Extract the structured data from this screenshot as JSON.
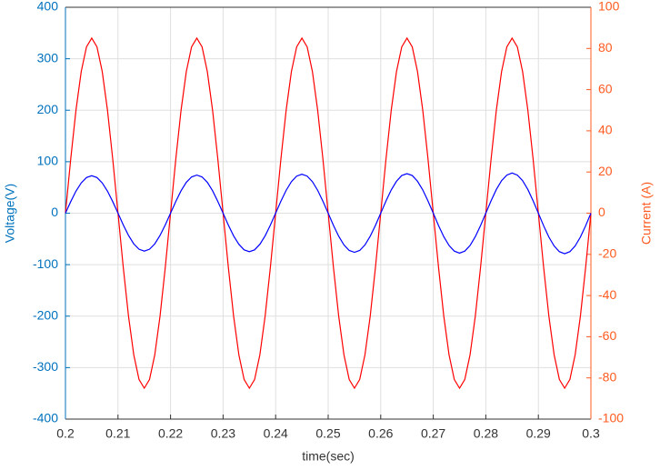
{
  "chart_data": {
    "type": "line",
    "xlabel": "time(sec)",
    "ylabel": "Voltage(V)",
    "y2label": "Current (A)",
    "x": [
      0.2,
      0.201,
      0.202,
      0.203,
      0.204,
      0.205,
      0.206,
      0.207,
      0.208,
      0.209,
      0.21,
      0.211,
      0.212,
      0.213,
      0.214,
      0.215,
      0.216,
      0.217,
      0.218,
      0.219,
      0.22,
      0.221,
      0.222,
      0.223,
      0.224,
      0.225,
      0.226,
      0.227,
      0.228,
      0.229,
      0.23,
      0.231,
      0.232,
      0.233,
      0.234,
      0.235,
      0.236,
      0.237,
      0.238,
      0.239,
      0.24,
      0.241,
      0.242,
      0.243,
      0.244,
      0.245,
      0.246,
      0.247,
      0.248,
      0.249,
      0.25,
      0.251,
      0.252,
      0.253,
      0.254,
      0.255,
      0.256,
      0.257,
      0.258,
      0.259,
      0.26,
      0.261,
      0.262,
      0.263,
      0.264,
      0.265,
      0.266,
      0.267,
      0.268,
      0.269,
      0.27,
      0.271,
      0.272,
      0.273,
      0.274,
      0.275,
      0.276,
      0.277,
      0.278,
      0.279,
      0.28,
      0.281,
      0.282,
      0.283,
      0.284,
      0.285,
      0.286,
      0.287,
      0.288,
      0.289,
      0.29,
      0.291,
      0.292,
      0.293,
      0.294,
      0.295,
      0.296,
      0.297,
      0.298,
      0.299,
      0.3
    ],
    "series": [
      {
        "color": "#ff0000",
        "axis": "y",
        "values": [
          0,
          105,
          200,
          275,
          323,
          340,
          323,
          275,
          200,
          105,
          0,
          -105,
          -200,
          -275,
          -323,
          -340,
          -323,
          -275,
          -200,
          -105,
          0,
          105,
          200,
          275,
          323,
          340,
          323,
          275,
          200,
          105,
          0,
          -105,
          -200,
          -275,
          -323,
          -340,
          -323,
          -275,
          -200,
          -105,
          0,
          105,
          200,
          275,
          323,
          340,
          323,
          275,
          200,
          105,
          0,
          -105,
          -200,
          -275,
          -323,
          -340,
          -323,
          -275,
          -200,
          -105,
          0,
          105,
          200,
          275,
          323,
          340,
          323,
          275,
          200,
          105,
          0,
          -105,
          -200,
          -275,
          -323,
          -340,
          -323,
          -275,
          -200,
          -105,
          0,
          105,
          200,
          275,
          323,
          340,
          323,
          275,
          200,
          105,
          0,
          -105,
          -200,
          -275,
          -323,
          -340,
          -323,
          -275,
          -200,
          -105,
          0
        ]
      },
      {
        "color": "#0000ff",
        "axis": "y2",
        "values": [
          0,
          5.6,
          10.7,
          14.7,
          17.3,
          18.2,
          17.3,
          14.7,
          10.7,
          5.6,
          0,
          -5.7,
          -10.8,
          -14.9,
          -17.5,
          -18.4,
          -17.5,
          -14.9,
          -10.8,
          -5.7,
          0,
          5.7,
          10.9,
          15.0,
          17.6,
          18.5,
          17.6,
          15.0,
          10.9,
          5.7,
          0,
          -5.8,
          -11.0,
          -15.1,
          -17.8,
          -18.7,
          -17.8,
          -15.1,
          -11.0,
          -5.8,
          0,
          5.8,
          11.1,
          15.3,
          18.0,
          18.9,
          18.0,
          15.3,
          11.1,
          5.8,
          0,
          -5.9,
          -11.2,
          -15.4,
          -18.1,
          -19.0,
          -18.1,
          -15.4,
          -11.2,
          -5.9,
          0,
          5.9,
          11.3,
          15.5,
          18.3,
          19.2,
          18.3,
          15.5,
          11.3,
          5.9,
          0,
          -6.0,
          -11.4,
          -15.7,
          -18.4,
          -19.4,
          -18.4,
          -15.7,
          -11.4,
          -6.0,
          0,
          6.0,
          11.5,
          15.8,
          18.5,
          19.5,
          18.5,
          15.8,
          11.5,
          6.0,
          0,
          -6.1,
          -11.6,
          -15.9,
          -18.7,
          -19.7,
          -18.7,
          -15.9,
          -11.6,
          -6.1,
          0
        ]
      }
    ],
    "xlim": [
      0.2,
      0.3
    ],
    "xticks": [
      0.2,
      0.21,
      0.22,
      0.23,
      0.24,
      0.25,
      0.26,
      0.27,
      0.28,
      0.29,
      0.3
    ],
    "ylim": [
      -400,
      400
    ],
    "yticks": [
      -400,
      -300,
      -200,
      -100,
      0,
      100,
      200,
      300,
      400
    ],
    "y2lim": [
      -100,
      100
    ],
    "y2ticks": [
      -100,
      -80,
      -60,
      -40,
      -20,
      0,
      20,
      40,
      60,
      80,
      100
    ],
    "grid": true,
    "y_color": "#0072bd",
    "y2_color": "#ff5a1f"
  }
}
